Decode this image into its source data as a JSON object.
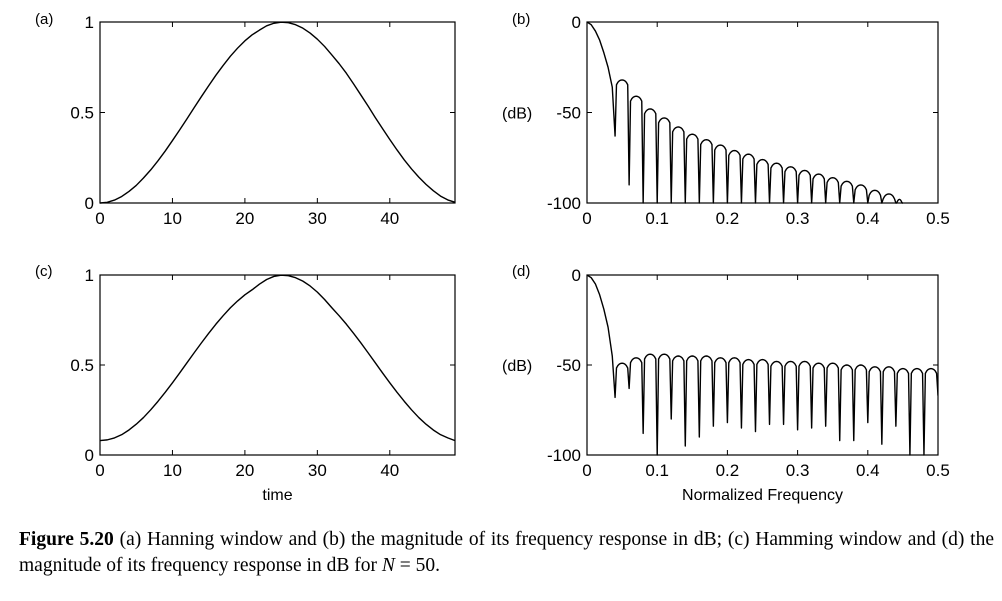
{
  "chart_data": [
    {
      "type": "line",
      "panel_label": "(a)",
      "xlabel": "",
      "ylabel": "",
      "xlim": [
        0,
        49
      ],
      "ylim": [
        0,
        1
      ],
      "xticks": [
        0,
        10,
        20,
        30,
        40
      ],
      "yticks": [
        0,
        0.5,
        1
      ],
      "ytick_labels": [
        "0",
        "0.5",
        "1"
      ],
      "series": [
        {
          "x": [
            0,
            1,
            2,
            3,
            4,
            5,
            6,
            7,
            8,
            9,
            10,
            11,
            12,
            13,
            14,
            15,
            16,
            17,
            18,
            19,
            20,
            21,
            22,
            23,
            24,
            25,
            26,
            27,
            28,
            29,
            30,
            31,
            32,
            33,
            34,
            35,
            36,
            37,
            38,
            39,
            40,
            41,
            42,
            43,
            44,
            45,
            46,
            47,
            48,
            49
          ],
          "values": [
            0,
            0.004,
            0.016,
            0.036,
            0.064,
            0.097,
            0.138,
            0.183,
            0.233,
            0.287,
            0.345,
            0.404,
            0.465,
            0.527,
            0.588,
            0.648,
            0.706,
            0.76,
            0.811,
            0.856,
            0.896,
            0.929,
            0.955,
            0.979,
            0.993,
            0.999,
            0.996,
            0.985,
            0.966,
            0.939,
            0.905,
            0.865,
            0.818,
            0.77,
            0.717,
            0.658,
            0.597,
            0.536,
            0.472,
            0.411,
            0.351,
            0.293,
            0.238,
            0.188,
            0.143,
            0.103,
            0.068,
            0.038,
            0.017,
            0.004
          ]
        }
      ]
    },
    {
      "type": "line",
      "panel_label": "(b)",
      "xlabel": "",
      "ylabel": "(dB)",
      "xlim": [
        0,
        0.5
      ],
      "ylim": [
        -100,
        0
      ],
      "xticks": [
        0,
        0.1,
        0.2,
        0.3,
        0.4,
        0.5
      ],
      "yticks": [
        -100,
        -50,
        0
      ],
      "main_lobe": {
        "x": [
          0,
          0.006,
          0.012,
          0.018,
          0.024,
          0.03,
          0.036,
          0.04
        ],
        "values": [
          0,
          -1.5,
          -5,
          -10,
          -17,
          -25,
          -36,
          -63
        ]
      },
      "nulls": {
        "x": [
          0.04,
          0.06,
          0.08,
          0.1,
          0.12,
          0.14,
          0.16,
          0.18,
          0.2,
          0.22,
          0.24,
          0.26,
          0.28,
          0.3,
          0.32,
          0.34,
          0.36,
          0.38,
          0.4,
          0.42,
          0.44
        ],
        "values": [
          -63,
          -90,
          -100,
          -100,
          -100,
          -100,
          -100,
          -100,
          -100,
          -100,
          -100,
          -100,
          -100,
          -100,
          -100,
          -100,
          -100,
          -100,
          -100,
          -100,
          -100
        ]
      },
      "sidelobe_peaks": {
        "x": [
          0.05,
          0.07,
          0.09,
          0.11,
          0.13,
          0.15,
          0.17,
          0.19,
          0.21,
          0.23,
          0.25,
          0.27,
          0.29,
          0.31,
          0.33,
          0.35,
          0.37,
          0.39,
          0.41,
          0.43,
          0.445
        ],
        "values": [
          -32,
          -41,
          -48,
          -53,
          -58,
          -62,
          -65,
          -68,
          -71,
          -73,
          -76,
          -78,
          -80,
          -82,
          -84,
          -86,
          -88,
          -90,
          -93,
          -95,
          -98
        ]
      }
    },
    {
      "type": "line",
      "panel_label": "(c)",
      "xlabel": "time",
      "ylabel": "",
      "xlim": [
        0,
        49
      ],
      "ylim": [
        0,
        1
      ],
      "xticks": [
        0,
        10,
        20,
        30,
        40
      ],
      "yticks": [
        0,
        0.5,
        1
      ],
      "ytick_labels": [
        "0",
        "0.5",
        "1"
      ],
      "series": [
        {
          "x": [
            0,
            1,
            2,
            3,
            4,
            5,
            6,
            7,
            8,
            9,
            10,
            11,
            12,
            13,
            14,
            15,
            16,
            17,
            18,
            19,
            20,
            21,
            22,
            23,
            24,
            25,
            26,
            27,
            28,
            29,
            30,
            31,
            32,
            33,
            34,
            35,
            36,
            37,
            38,
            39,
            40,
            41,
            42,
            43,
            44,
            45,
            46,
            47,
            48,
            49
          ],
          "values": [
            0.08,
            0.084,
            0.095,
            0.113,
            0.139,
            0.171,
            0.208,
            0.251,
            0.298,
            0.348,
            0.401,
            0.456,
            0.512,
            0.568,
            0.623,
            0.676,
            0.727,
            0.774,
            0.818,
            0.856,
            0.89,
            0.918,
            0.949,
            0.975,
            0.992,
            0.999,
            0.996,
            0.985,
            0.966,
            0.939,
            0.905,
            0.864,
            0.818,
            0.774,
            0.727,
            0.676,
            0.623,
            0.568,
            0.512,
            0.456,
            0.401,
            0.348,
            0.298,
            0.251,
            0.208,
            0.171,
            0.139,
            0.113,
            0.095,
            0.08
          ]
        }
      ]
    },
    {
      "type": "line",
      "panel_label": "(d)",
      "xlabel": "Normalized Frequency",
      "ylabel": "(dB)",
      "xlim": [
        0,
        0.5
      ],
      "ylim": [
        -100,
        0
      ],
      "xticks": [
        0,
        0.1,
        0.2,
        0.3,
        0.4,
        0.5
      ],
      "yticks": [
        -100,
        -50,
        0
      ],
      "main_lobe": {
        "x": [
          0,
          0.006,
          0.012,
          0.018,
          0.024,
          0.03,
          0.036,
          0.04
        ],
        "values": [
          0,
          -1.5,
          -5,
          -11,
          -19,
          -29,
          -45,
          -68
        ]
      },
      "nulls": {
        "x": [
          0.04,
          0.06,
          0.08,
          0.1,
          0.12,
          0.14,
          0.16,
          0.18,
          0.2,
          0.22,
          0.24,
          0.26,
          0.28,
          0.3,
          0.32,
          0.34,
          0.36,
          0.38,
          0.4,
          0.42,
          0.44,
          0.46,
          0.48,
          0.5
        ],
        "values": [
          -72,
          -63,
          -88,
          -100,
          -80,
          -95,
          -90,
          -84,
          -82,
          -85,
          -87,
          -83,
          -83,
          -86,
          -85,
          -84,
          -92,
          -92,
          -82,
          -94,
          -84,
          -100,
          -100,
          -67
        ]
      },
      "sidelobe_peaks": {
        "x": [
          0.05,
          0.07,
          0.09,
          0.11,
          0.13,
          0.15,
          0.17,
          0.19,
          0.21,
          0.23,
          0.25,
          0.27,
          0.29,
          0.31,
          0.33,
          0.35,
          0.37,
          0.39,
          0.41,
          0.43,
          0.45,
          0.47,
          0.49
        ],
        "values": [
          -49,
          -46,
          -44,
          -44,
          -45,
          -45,
          -45,
          -46,
          -46,
          -47,
          -47,
          -48,
          -48,
          -48,
          -49,
          -49,
          -50,
          -50,
          -51,
          -51,
          -52,
          -52,
          -52
        ]
      }
    }
  ],
  "caption": {
    "figure_label": "Figure 5.20",
    "text_before_var": " (a) Hanning window and (b) the magnitude of its frequency response in dB; (c) Hamming window and (d) the magnitude of its frequency response in dB for ",
    "variable": "N",
    "text_after_var": " = 50."
  }
}
